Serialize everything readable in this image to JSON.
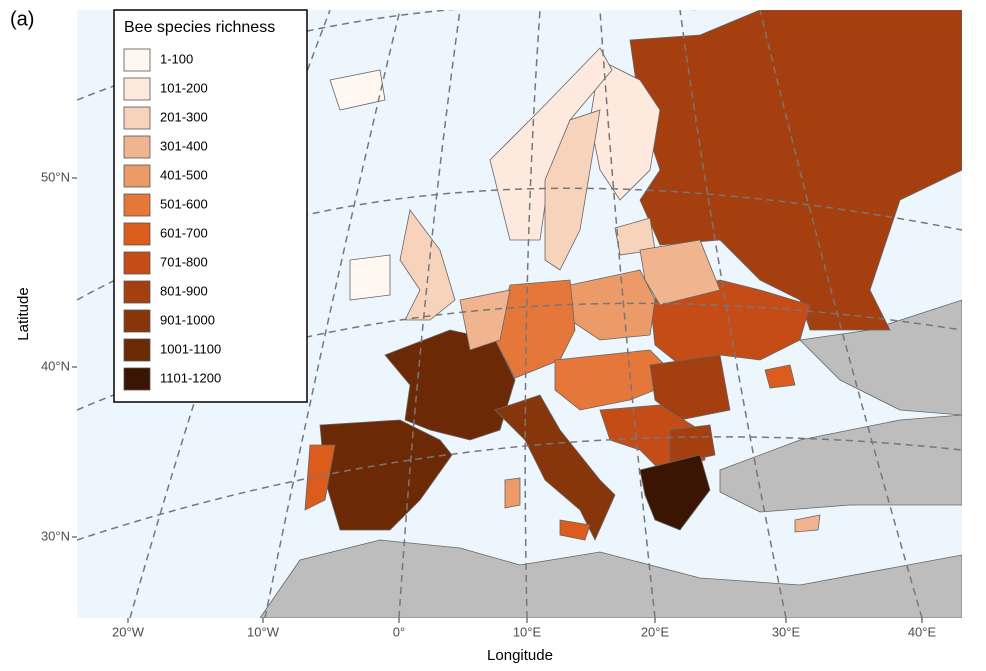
{
  "panel_label": "(a)",
  "legend": {
    "title": "Bee species richness",
    "items": [
      {
        "label": "1-100",
        "color": "#fff7f0"
      },
      {
        "label": "101-200",
        "color": "#fde9dd"
      },
      {
        "label": "201-300",
        "color": "#f8d3bb"
      },
      {
        "label": "301-400",
        "color": "#f0b48f"
      },
      {
        "label": "401-500",
        "color": "#eb9a68"
      },
      {
        "label": "501-600",
        "color": "#e5773b"
      },
      {
        "label": "601-700",
        "color": "#dc5c1d"
      },
      {
        "label": "701-800",
        "color": "#c64c17"
      },
      {
        "label": "801-900",
        "color": "#a53f10"
      },
      {
        "label": "901-1000",
        "color": "#87350b"
      },
      {
        "label": "1001-1100",
        "color": "#6c2906"
      },
      {
        "label": "1101-1200",
        "color": "#3a1504"
      }
    ]
  },
  "axes": {
    "x_label": "Longitude",
    "y_label": "Latitude",
    "x_ticks": [
      "20°W",
      "10°W",
      "0°",
      "10°E",
      "20°E",
      "30°E",
      "40°E"
    ],
    "y_ticks": [
      "50°N",
      "40°N",
      "30°N"
    ]
  }
}
